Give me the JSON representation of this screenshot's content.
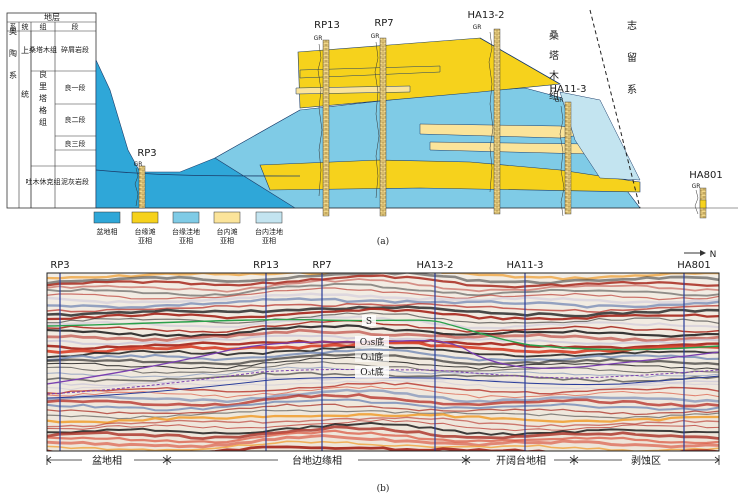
{
  "panel_a": {
    "label": "(a)",
    "strat_table": {
      "header": "地层",
      "col_heads": [
        "系",
        "统",
        "组",
        "段"
      ],
      "system": "奥陶系",
      "series": "上统",
      "formations": [
        {
          "name": "桑塔木组",
          "member": "碎屑岩段"
        },
        {
          "name": "良里塔格组",
          "members": [
            "良一段",
            "良二段",
            "良三段"
          ]
        },
        {
          "name": "吐木休克组",
          "member": "泥灰岩段"
        }
      ]
    },
    "wells": [
      {
        "name": "RP3",
        "log": "GR"
      },
      {
        "name": "RP13",
        "log": "GR"
      },
      {
        "name": "RP7",
        "log": "GR"
      },
      {
        "name": "HA13-2",
        "log": "GR"
      },
      {
        "name": "HA11-3",
        "log": "GR"
      },
      {
        "name": "HA801",
        "log": "GR"
      }
    ],
    "side_labels": {
      "sangtamu": "桑塔木组",
      "silurian": "志留系"
    },
    "legend": [
      {
        "label": "盆地相",
        "color": "#2fa7d8"
      },
      {
        "label": "台缘滩亚相",
        "color": "#f6d21c"
      },
      {
        "label": "台缘洼地亚相",
        "color": "#7fcbe6"
      },
      {
        "label": "台内滩亚相",
        "color": "#fbe49a"
      },
      {
        "label": "台内洼地亚相",
        "color": "#c3e4f0"
      }
    ]
  },
  "panel_b": {
    "label": "(b)",
    "north": "N",
    "wells": [
      "RP3",
      "RP13",
      "RP7",
      "HA13-2",
      "HA11-3",
      "HA801"
    ],
    "horizons": [
      {
        "label": "S"
      },
      {
        "label": "O₃s底"
      },
      {
        "label": "O₃l底"
      },
      {
        "label": "O₃t底"
      }
    ],
    "zones": [
      "盆地相",
      "台地边缘相",
      "开阔台地相",
      "剥蚀区"
    ]
  }
}
